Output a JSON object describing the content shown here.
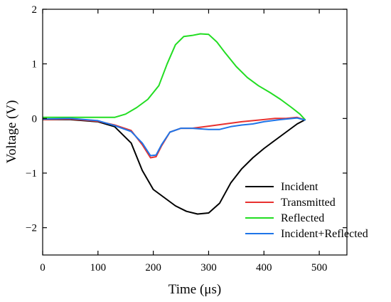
{
  "chart_data": {
    "type": "line",
    "xlabel": "Time (μs)",
    "ylabel": "Voltage (V)",
    "xlim": [
      0,
      550
    ],
    "ylim": [
      -2.5,
      2
    ],
    "x_ticks": [
      0,
      100,
      200,
      300,
      400,
      500
    ],
    "y_ticks": [
      -2,
      -1,
      0,
      1,
      2
    ],
    "x_tick_labels": [
      "0",
      "100",
      "200",
      "300",
      "400",
      "500"
    ],
    "y_tick_labels": [
      "−2",
      "−1",
      "0",
      "1",
      "2"
    ],
    "legend_position": "bottom-right",
    "series": [
      {
        "name": "Incident",
        "color": "#000000",
        "points": [
          [
            0,
            -0.02
          ],
          [
            50,
            -0.02
          ],
          [
            100,
            -0.06
          ],
          [
            130,
            -0.15
          ],
          [
            160,
            -0.45
          ],
          [
            180,
            -0.95
          ],
          [
            200,
            -1.3
          ],
          [
            220,
            -1.45
          ],
          [
            240,
            -1.6
          ],
          [
            260,
            -1.7
          ],
          [
            280,
            -1.75
          ],
          [
            300,
            -1.73
          ],
          [
            320,
            -1.55
          ],
          [
            340,
            -1.18
          ],
          [
            360,
            -0.92
          ],
          [
            380,
            -0.72
          ],
          [
            400,
            -0.55
          ],
          [
            420,
            -0.4
          ],
          [
            440,
            -0.25
          ],
          [
            460,
            -0.1
          ],
          [
            475,
            -0.02
          ]
        ]
      },
      {
        "name": "Transmitted",
        "color": "#e8312f",
        "points": [
          [
            0,
            -0.02
          ],
          [
            50,
            -0.01
          ],
          [
            100,
            -0.05
          ],
          [
            130,
            -0.12
          ],
          [
            160,
            -0.22
          ],
          [
            180,
            -0.48
          ],
          [
            195,
            -0.72
          ],
          [
            205,
            -0.7
          ],
          [
            215,
            -0.5
          ],
          [
            230,
            -0.25
          ],
          [
            250,
            -0.18
          ],
          [
            270,
            -0.18
          ],
          [
            300,
            -0.14
          ],
          [
            330,
            -0.1
          ],
          [
            360,
            -0.06
          ],
          [
            400,
            -0.02
          ],
          [
            420,
            0.0
          ],
          [
            440,
            0.0
          ],
          [
            460,
            0.02
          ],
          [
            475,
            -0.03
          ]
        ]
      },
      {
        "name": "Reflected",
        "color": "#22dd22",
        "points": [
          [
            0,
            0.02
          ],
          [
            50,
            0.02
          ],
          [
            100,
            0.02
          ],
          [
            130,
            0.02
          ],
          [
            150,
            0.08
          ],
          [
            170,
            0.2
          ],
          [
            190,
            0.35
          ],
          [
            210,
            0.6
          ],
          [
            225,
            1.0
          ],
          [
            240,
            1.35
          ],
          [
            255,
            1.5
          ],
          [
            270,
            1.52
          ],
          [
            285,
            1.55
          ],
          [
            300,
            1.54
          ],
          [
            315,
            1.4
          ],
          [
            330,
            1.2
          ],
          [
            350,
            0.95
          ],
          [
            370,
            0.75
          ],
          [
            390,
            0.6
          ],
          [
            410,
            0.48
          ],
          [
            430,
            0.35
          ],
          [
            450,
            0.2
          ],
          [
            465,
            0.08
          ],
          [
            475,
            -0.03
          ]
        ]
      },
      {
        "name": "Incident+Reflected",
        "color": "#1f75e8",
        "points": [
          [
            0,
            -0.01
          ],
          [
            50,
            0.0
          ],
          [
            100,
            -0.04
          ],
          [
            130,
            -0.13
          ],
          [
            160,
            -0.24
          ],
          [
            180,
            -0.45
          ],
          [
            195,
            -0.68
          ],
          [
            205,
            -0.67
          ],
          [
            215,
            -0.48
          ],
          [
            230,
            -0.25
          ],
          [
            250,
            -0.18
          ],
          [
            270,
            -0.18
          ],
          [
            300,
            -0.2
          ],
          [
            320,
            -0.2
          ],
          [
            340,
            -0.15
          ],
          [
            360,
            -0.12
          ],
          [
            380,
            -0.1
          ],
          [
            400,
            -0.06
          ],
          [
            430,
            -0.02
          ],
          [
            460,
            0.01
          ],
          [
            475,
            -0.03
          ]
        ]
      }
    ]
  }
}
